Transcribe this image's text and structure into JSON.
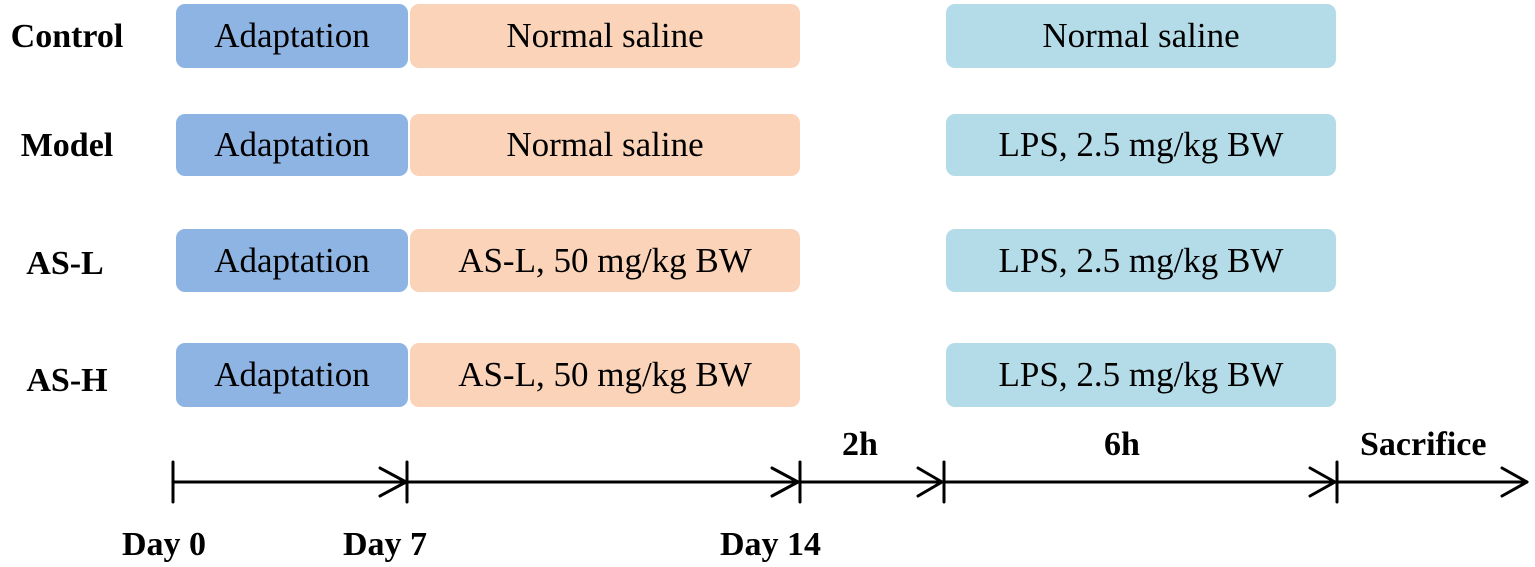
{
  "rows": [
    {
      "label": "Control",
      "adaptation": "Adaptation",
      "treatment": "Normal saline",
      "challenge": "Normal saline"
    },
    {
      "label": "Model",
      "adaptation": "Adaptation",
      "treatment": "Normal saline",
      "challenge": "LPS, 2.5 mg/kg BW"
    },
    {
      "label": "AS-L",
      "adaptation": "Adaptation",
      "treatment": "AS-L,  50 mg/kg BW",
      "challenge": "LPS, 2.5 mg/kg BW"
    },
    {
      "label": "AS-H",
      "adaptation": "Adaptation",
      "treatment": "AS-L,  50 mg/kg BW",
      "challenge": "LPS, 2.5 mg/kg BW"
    }
  ],
  "timeline": {
    "days": [
      "Day 0",
      "Day 7",
      "Day 14"
    ],
    "intervals": [
      "2h",
      "6h"
    ],
    "end_label": "Sacrifice"
  },
  "colors": {
    "adaptation": "#8eb4e3",
    "treatment": "#fad3b8",
    "challenge": "#b4dce8"
  }
}
